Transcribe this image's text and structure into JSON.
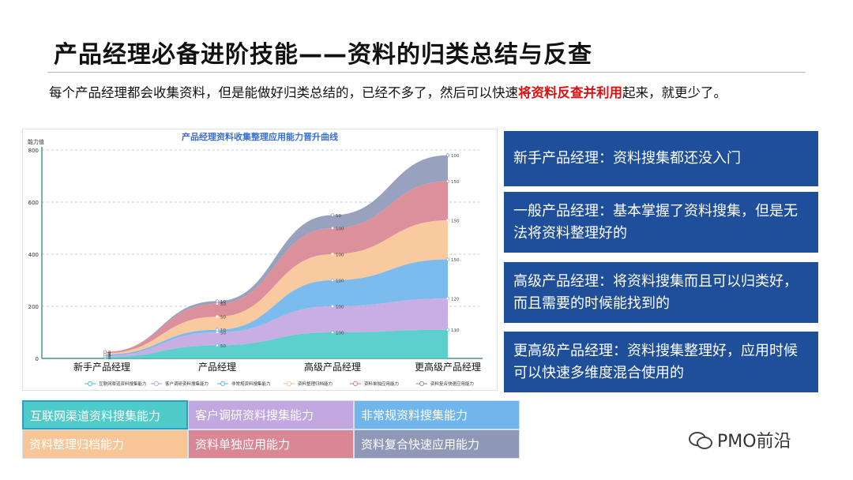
{
  "header": {
    "title": "产品经理必备进阶技能——资料的归类总结与反查",
    "subtitle_before": "每个产品经理都会收集资料，但是能做好归类总结的，已经不多了，然后可以快速",
    "subtitle_highlight": "将资料反查并利用",
    "subtitle_after": "起来，就更少了。"
  },
  "panels": [
    "新手产品经理：资料搜集都还没入门",
    "一般产品经理：基本掌握了资料搜集，但是无法将资料整理好的",
    "高级产品经理：将资料搜集而且可以归类好，而且需要的时候能找到的",
    "更高级产品经理：资料搜集整理好，应用时候可以快速多维度混合使用的"
  ],
  "legend_grid": [
    "互联网渠道资料搜集能力",
    "客户调研资料搜集能力",
    "非常规资料搜集能力",
    "资料整理归档能力",
    "资料单独应用能力",
    "资料复合快速应用能力"
  ],
  "brand": "PMO前沿",
  "colors": {
    "series": [
      "#4fcbc9",
      "#c3a7e0",
      "#70b5ec",
      "#f8c597",
      "#d98794",
      "#8f99b7"
    ],
    "panel": "#1f4f9a",
    "highlight": "#e01010"
  },
  "chart_data": {
    "type": "area",
    "stacked": true,
    "title": "产品经理资料收集整理应用能力晋升曲线",
    "ylabel": "能力值",
    "xlabel": "",
    "categories": [
      "新手产品经理",
      "产品经理",
      "高级产品经理",
      "更高级产品经理"
    ],
    "ylim": [
      0,
      800
    ],
    "yticks": [
      0,
      200,
      400,
      600,
      800
    ],
    "grid": true,
    "legend_position": "bottom",
    "series": [
      {
        "name": "互联网渠道资料搜集能力",
        "values": [
          5,
          50,
          100,
          110
        ]
      },
      {
        "name": "客户调研资料搜集能力",
        "values": [
          5,
          50,
          100,
          120
        ]
      },
      {
        "name": "非常规资料搜集能力",
        "values": [
          5,
          10,
          100,
          150
        ]
      },
      {
        "name": "资料整理归档能力",
        "values": [
          5,
          50,
          100,
          150
        ]
      },
      {
        "name": "资料单独应用能力",
        "values": [
          5,
          50,
          100,
          150
        ]
      },
      {
        "name": "资料复合快速应用能力",
        "values": [
          0,
          10,
          50,
          100
        ]
      }
    ]
  }
}
